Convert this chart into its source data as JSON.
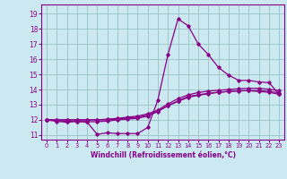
{
  "title": "",
  "xlabel": "Windchill (Refroidissement éolien,°C)",
  "ylabel": "",
  "xlim": [
    -0.5,
    23.5
  ],
  "ylim": [
    10.7,
    19.6
  ],
  "yticks": [
    11,
    12,
    13,
    14,
    15,
    16,
    17,
    18,
    19
  ],
  "xticks": [
    0,
    1,
    2,
    3,
    4,
    5,
    6,
    7,
    8,
    9,
    10,
    11,
    12,
    13,
    14,
    15,
    16,
    17,
    18,
    19,
    20,
    21,
    22,
    23
  ],
  "bg_color": "#cce8f0",
  "line_color": "#880088",
  "grid_color": "#9ec8c8",
  "lines": [
    {
      "x": [
        0,
        1,
        2,
        3,
        4,
        5,
        6,
        7,
        8,
        9,
        10,
        11,
        12,
        13,
        14,
        15,
        16,
        17,
        18,
        19,
        20,
        21,
        22,
        23
      ],
      "y": [
        12.0,
        11.9,
        11.85,
        11.9,
        11.85,
        11.05,
        11.15,
        11.1,
        11.1,
        11.1,
        11.5,
        13.3,
        16.3,
        18.65,
        18.2,
        17.0,
        16.3,
        15.45,
        14.95,
        14.6,
        14.6,
        14.5,
        14.45,
        13.7
      ]
    },
    {
      "x": [
        0,
        1,
        2,
        3,
        4,
        5,
        6,
        7,
        8,
        9,
        10,
        11,
        12,
        13,
        14,
        15,
        16,
        17,
        18,
        19,
        20,
        21,
        22,
        23
      ],
      "y": [
        12.0,
        11.95,
        11.9,
        11.9,
        11.88,
        11.88,
        11.92,
        12.0,
        12.05,
        12.1,
        12.25,
        12.55,
        12.95,
        13.25,
        13.55,
        13.65,
        13.75,
        13.82,
        13.87,
        13.9,
        13.93,
        13.93,
        13.88,
        13.78
      ]
    },
    {
      "x": [
        0,
        1,
        2,
        3,
        4,
        5,
        6,
        7,
        8,
        9,
        10,
        11,
        12,
        13,
        14,
        15,
        16,
        17,
        18,
        19,
        20,
        21,
        22,
        23
      ],
      "y": [
        12.0,
        12.0,
        12.0,
        12.0,
        12.0,
        12.0,
        12.05,
        12.1,
        12.18,
        12.25,
        12.4,
        12.65,
        13.05,
        13.4,
        13.65,
        13.8,
        13.9,
        13.95,
        14.0,
        14.05,
        14.08,
        14.08,
        14.02,
        13.92
      ]
    },
    {
      "x": [
        0,
        1,
        2,
        3,
        4,
        5,
        6,
        7,
        8,
        9,
        10,
        11,
        12,
        13,
        14,
        15,
        16,
        17,
        18,
        19,
        20,
        21,
        22,
        23
      ],
      "y": [
        12.0,
        12.0,
        12.0,
        12.0,
        12.0,
        12.0,
        12.0,
        12.05,
        12.12,
        12.18,
        12.32,
        12.58,
        12.92,
        13.22,
        13.48,
        13.62,
        13.72,
        13.82,
        13.87,
        13.92,
        13.92,
        13.87,
        13.82,
        13.68
      ]
    }
  ]
}
